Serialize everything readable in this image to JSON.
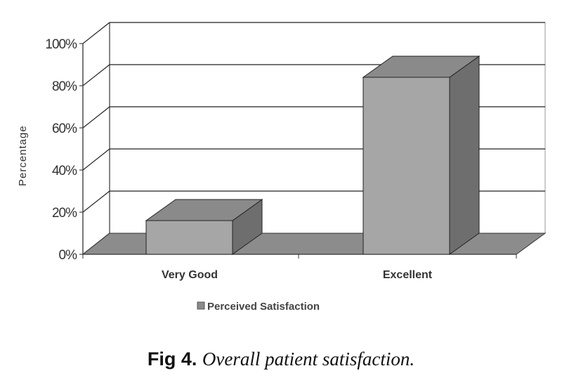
{
  "chart_data": {
    "type": "bar",
    "style": "3d",
    "categories": [
      "Very Good",
      "Excellent"
    ],
    "series": [
      {
        "name": "Perceived Satisfaction",
        "values": [
          16,
          84
        ]
      }
    ],
    "ylabel": "Percentage",
    "xlabel": "",
    "ylim": [
      0,
      100
    ],
    "yticks": [
      "0%",
      "20%",
      "40%",
      "60%",
      "80%",
      "100%"
    ],
    "grid": true,
    "legend": "bottom",
    "colors": {
      "bar_front": "#a6a6a6",
      "bar_top": "#8a8a8a",
      "bar_side": "#6e6e6e",
      "floor": "#8c8c8c"
    }
  },
  "caption": {
    "label": "Fig 4.",
    "text": "Overall patient satisfaction."
  }
}
